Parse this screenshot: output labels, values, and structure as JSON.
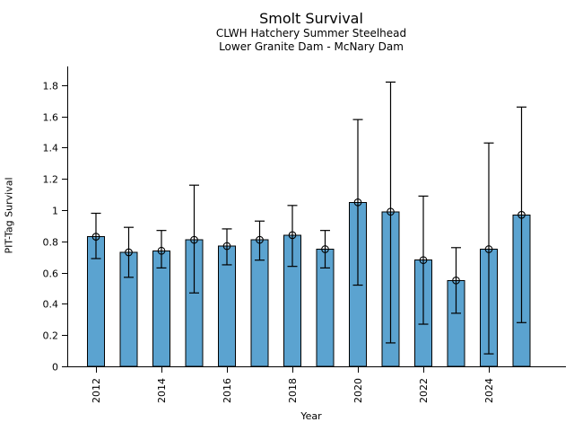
{
  "chart_data": {
    "type": "bar",
    "title": "Smolt Survival",
    "subtitle1": "CLWH Hatchery Summer Steelhead",
    "subtitle2": "Lower Granite Dam - McNary Dam",
    "xlabel": "Year",
    "ylabel": "PIT-Tag Survival",
    "categories": [
      2012,
      2013,
      2014,
      2015,
      2016,
      2017,
      2018,
      2019,
      2020,
      2021,
      2022,
      2023,
      2024,
      2025
    ],
    "values": [
      0.83,
      0.73,
      0.74,
      0.81,
      0.77,
      0.81,
      0.84,
      0.75,
      1.05,
      0.99,
      0.68,
      0.55,
      0.75,
      0.97
    ],
    "error_low": [
      0.69,
      0.57,
      0.63,
      0.47,
      0.65,
      0.68,
      0.64,
      0.63,
      0.52,
      0.15,
      0.27,
      0.34,
      0.08,
      0.28
    ],
    "error_high": [
      0.98,
      0.89,
      0.87,
      1.16,
      0.88,
      0.93,
      1.03,
      0.87,
      1.58,
      1.82,
      1.09,
      0.76,
      1.43,
      1.66
    ],
    "ylim": [
      0,
      1.92
    ],
    "y_ticks": [
      0,
      0.2,
      0.4,
      0.6,
      0.8,
      1,
      1.2,
      1.4,
      1.6,
      1.8
    ],
    "y_tick_labels": [
      "0",
      "0.2",
      "0.4",
      "0.6",
      "0.8",
      "1",
      "1.2",
      "1.4",
      "1.6",
      "1.8"
    ],
    "x_tick_labels": [
      "2012",
      "2014",
      "2016",
      "2018",
      "2020",
      "2022",
      "2024"
    ],
    "grid": false,
    "legend": null,
    "bar_color": "#5ba3d0",
    "bar_edge_color": "#000000",
    "error_bar_color": "#000000",
    "marker": "open-circle"
  }
}
